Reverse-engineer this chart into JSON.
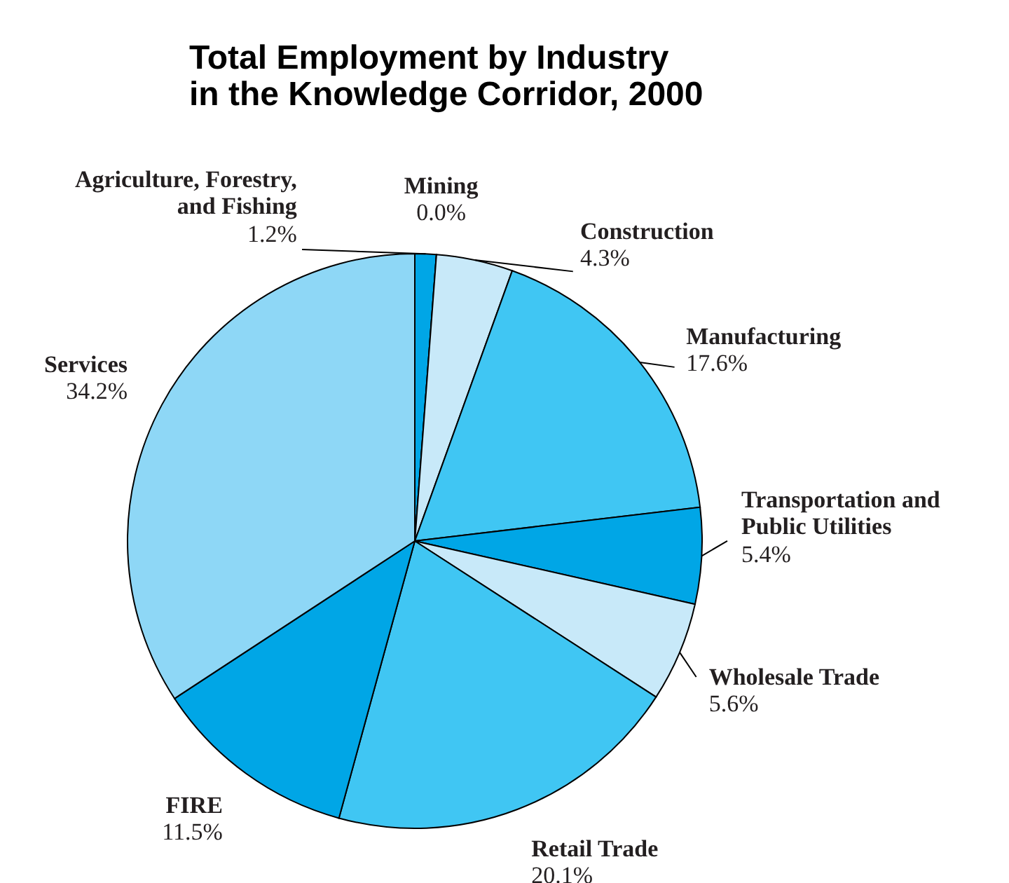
{
  "chart_data": {
    "type": "pie",
    "title": [
      "Total Employment by Industry",
      "in the Knowledge Corridor, 2000"
    ],
    "categories": [
      "Agriculture, Forestry,\nand Fishing",
      "Mining",
      "Construction",
      "Manufacturing",
      "Transportation and\nPublic Utilities",
      "Wholesale Trade",
      "Retail Trade",
      "FIRE",
      "Services"
    ],
    "values": [
      1.2,
      0.0,
      4.3,
      17.6,
      5.4,
      5.6,
      20.1,
      11.5,
      34.2
    ],
    "value_labels": [
      "1.2%",
      "0.0%",
      "4.3%",
      "17.6%",
      "5.4%",
      "5.6%",
      "20.1%",
      "11.5%",
      "34.2%"
    ],
    "colors": [
      "#00a6e6",
      "#00a6e6",
      "#c8e9f9",
      "#40c6f3",
      "#00a6e6",
      "#c8e9f9",
      "#40c6f3",
      "#00a6e6",
      "#8ed7f6"
    ]
  }
}
